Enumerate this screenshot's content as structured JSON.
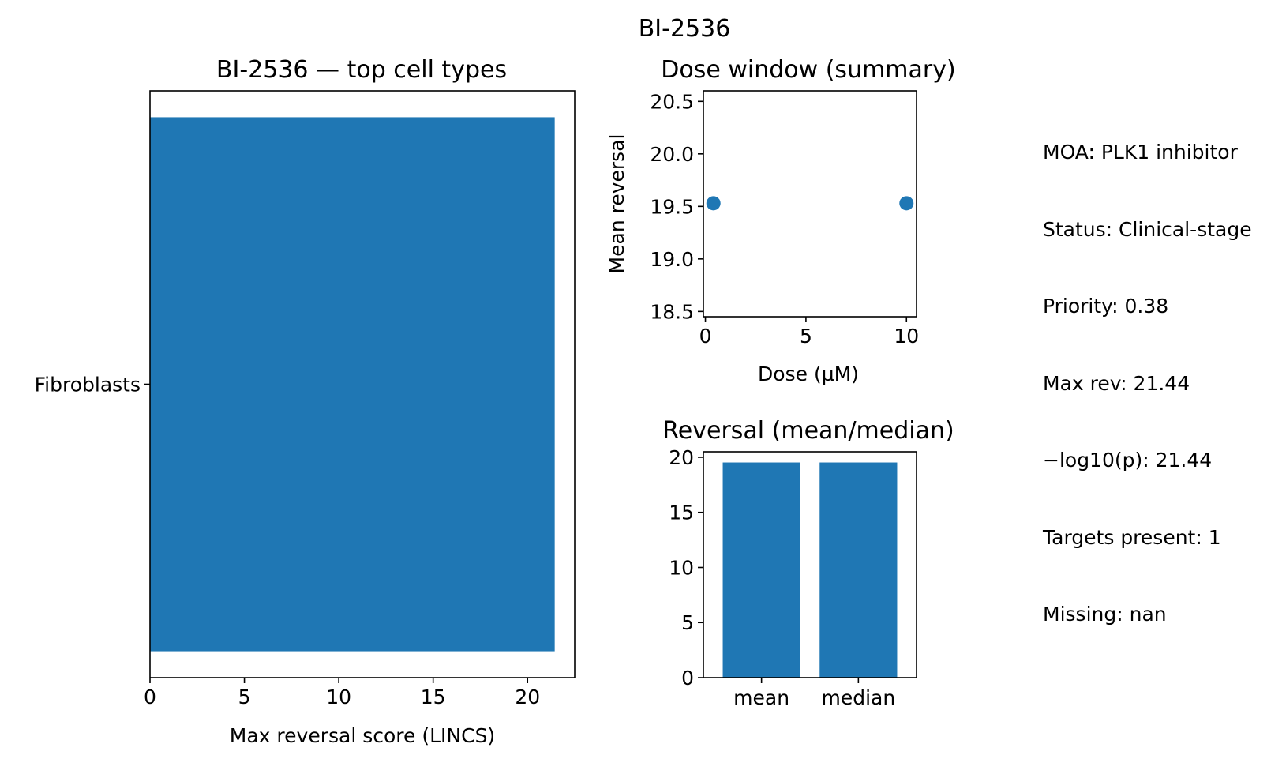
{
  "figure": {
    "suptitle": "BI-2536"
  },
  "colors": {
    "bar": "#1f77b4",
    "axis": "#000000",
    "background": "#ffffff"
  },
  "info": {
    "lines": [
      "MOA: PLK1 inhibitor",
      "Status: Clinical-stage",
      "Priority: 0.38",
      "Max rev: 21.44",
      "−log10(p): 21.44",
      "Targets present: 1",
      "Missing: nan"
    ]
  },
  "chart_data": [
    {
      "type": "bar",
      "orientation": "horizontal",
      "title": "BI-2536 — top cell types",
      "categories": [
        "Fibroblasts"
      ],
      "values": [
        21.44
      ],
      "xlabel": "Max reversal score (LINCS)",
      "ylabel": "",
      "xlim": [
        0,
        22.5
      ],
      "xticks": [
        0,
        5,
        10,
        15,
        20
      ],
      "grid": false
    },
    {
      "type": "scatter",
      "title": "Dose window (summary)",
      "x": [
        0.4,
        10
      ],
      "y": [
        19.53,
        19.53
      ],
      "xlabel": "Dose (µM)",
      "ylabel": "Mean reversal",
      "xlim": [
        -0.1,
        10.5
      ],
      "ylim": [
        18.45,
        20.6
      ],
      "xticks": [
        0,
        5,
        10
      ],
      "yticks": [
        "18.5",
        "19.0",
        "19.5",
        "20.0",
        "20.5"
      ],
      "grid": false
    },
    {
      "type": "bar",
      "title": "Reversal (mean/median)",
      "categories": [
        "mean",
        "median"
      ],
      "values": [
        19.53,
        19.53
      ],
      "xlabel": "",
      "ylabel": "",
      "ylim": [
        0,
        20.5
      ],
      "yticks": [
        0,
        5,
        10,
        15,
        20
      ],
      "grid": false
    }
  ]
}
